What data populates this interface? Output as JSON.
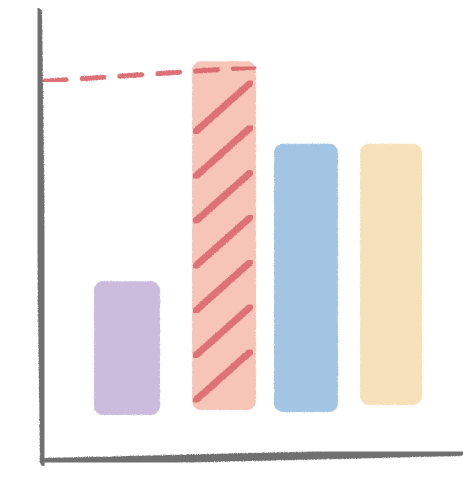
{
  "chart_data": {
    "type": "bar",
    "style": "hand-drawn crayon sketch",
    "categories": [
      "",
      "",
      "",
      ""
    ],
    "values": [
      1.3,
      2.9,
      2.3,
      2.3
    ],
    "ylim": [
      0,
      3.2
    ],
    "y_ticks": [
      1,
      2,
      3
    ],
    "title": "",
    "xlabel": "",
    "ylabel": "",
    "grid": false,
    "legend": "none",
    "highlight": {
      "index": 1,
      "pattern": "diagonal-hatch",
      "reference_line": "dashed"
    },
    "colors": [
      "#c9b8dc",
      "#f7c2b4",
      "#9fc2e3",
      "#f6e0b8"
    ],
    "highlight_color": "#d9646a",
    "axis_color": "#6f6f6f"
  }
}
